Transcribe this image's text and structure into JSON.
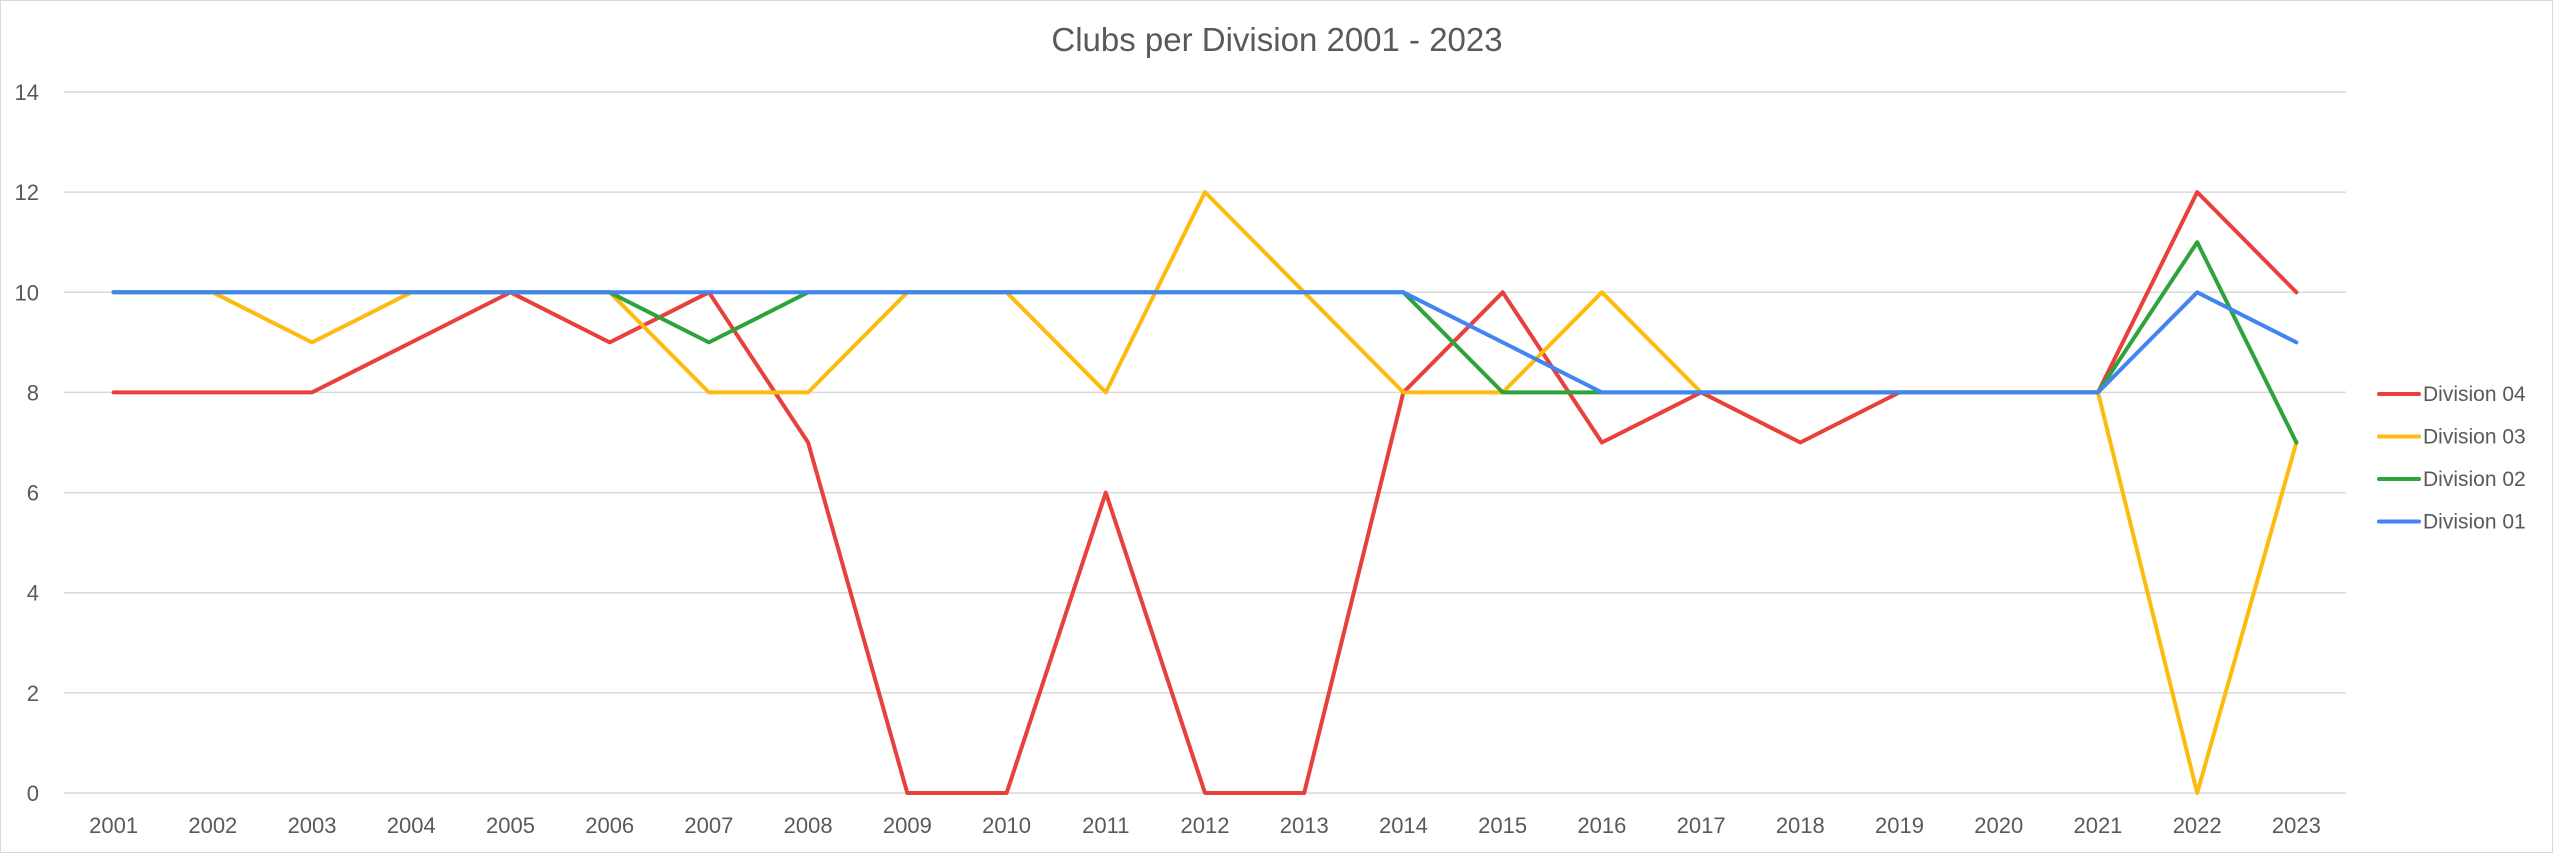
{
  "chart_data": {
    "type": "line",
    "title": "Clubs per Division 2001 - 2023",
    "xlabel": "",
    "ylabel": "",
    "ylim": [
      0,
      14
    ],
    "yticks": [
      0,
      2,
      4,
      6,
      8,
      10,
      12,
      14
    ],
    "grid": "horizontal",
    "legend_position": "right",
    "categories": [
      "2001",
      "2002",
      "2003",
      "2004",
      "2005",
      "2006",
      "2007",
      "2008",
      "2009",
      "2010",
      "2011",
      "2012",
      "2013",
      "2014",
      "2015",
      "2016",
      "2017",
      "2018",
      "2019",
      "2020",
      "2021",
      "2022",
      "2023"
    ],
    "series": [
      {
        "name": "Division 04",
        "color": "#e8403a",
        "values": [
          8,
          8,
          8,
          9,
          10,
          9,
          10,
          7,
          0,
          0,
          6,
          0,
          0,
          8,
          10,
          7,
          8,
          7,
          8,
          8,
          8,
          12,
          10
        ]
      },
      {
        "name": "Division 03",
        "color": "#fdbb10",
        "values": [
          10,
          10,
          9,
          10,
          10,
          10,
          8,
          8,
          10,
          10,
          8,
          12,
          10,
          8,
          8,
          10,
          8,
          8,
          8,
          8,
          8,
          0,
          7
        ]
      },
      {
        "name": "Division 02",
        "color": "#2fa33b",
        "values": [
          10,
          10,
          10,
          10,
          10,
          10,
          9,
          10,
          10,
          10,
          10,
          10,
          10,
          10,
          8,
          8,
          8,
          8,
          8,
          8,
          8,
          11,
          7
        ]
      },
      {
        "name": "Division 01",
        "color": "#4285f0",
        "values": [
          10,
          10,
          10,
          10,
          10,
          10,
          10,
          10,
          10,
          10,
          10,
          10,
          10,
          10,
          9,
          8,
          8,
          8,
          8,
          8,
          8,
          10,
          9
        ]
      }
    ],
    "legend_order": [
      "Division 04",
      "Division 03",
      "Division 02",
      "Division 01"
    ],
    "colors": {
      "grid": "#d9d9d9",
      "text": "#595959",
      "border": "#d9d9d9"
    }
  }
}
